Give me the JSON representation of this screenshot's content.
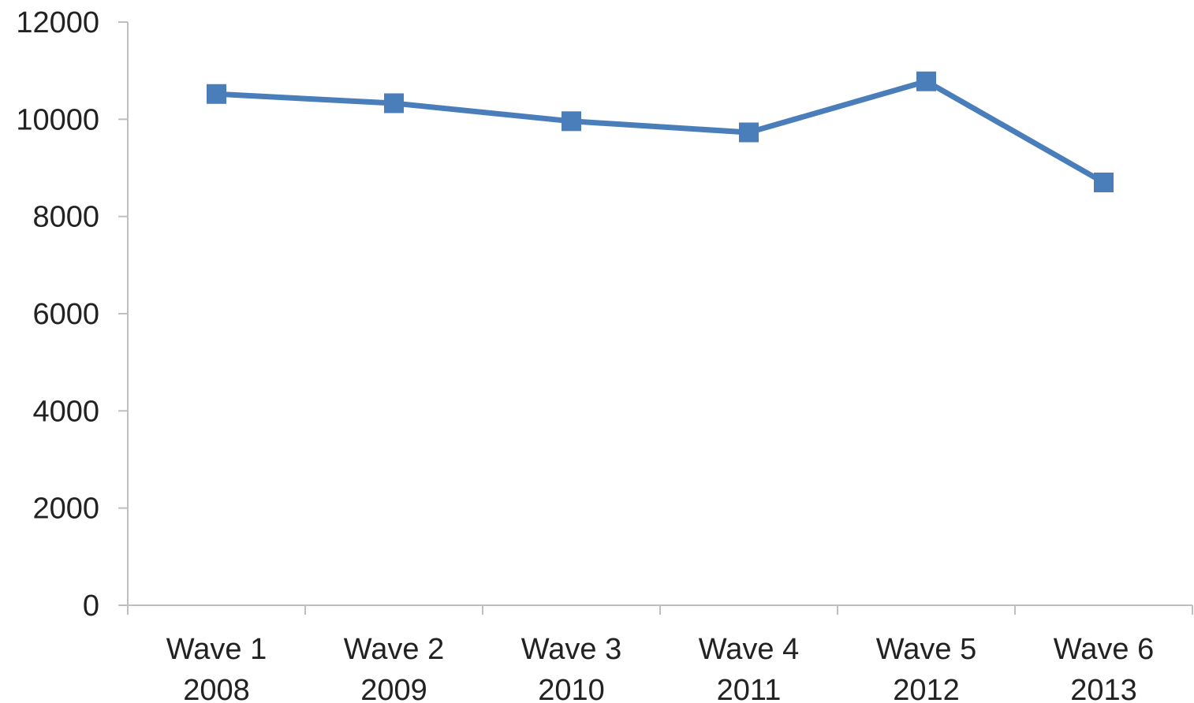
{
  "chart_data": {
    "type": "line",
    "title": "",
    "xlabel": "",
    "ylabel": "",
    "categories": [
      [
        "Wave 1",
        "2008"
      ],
      [
        "Wave 2",
        "2009"
      ],
      [
        "Wave 3",
        "2010"
      ],
      [
        "Wave 4",
        "2011"
      ],
      [
        "Wave 5",
        "2012"
      ],
      [
        "Wave 6",
        "2013"
      ]
    ],
    "series": [
      {
        "color": "#4A7EBB",
        "marker": "square",
        "values": [
          10520,
          10330,
          9960,
          9730,
          10780,
          8700
        ]
      }
    ],
    "ylim": [
      0,
      12000
    ],
    "yticks": [
      0,
      2000,
      4000,
      6000,
      8000,
      10000,
      12000
    ],
    "grid": false,
    "legend": "none",
    "axis_color": "#BFBFBF",
    "text_color": "#222222"
  }
}
